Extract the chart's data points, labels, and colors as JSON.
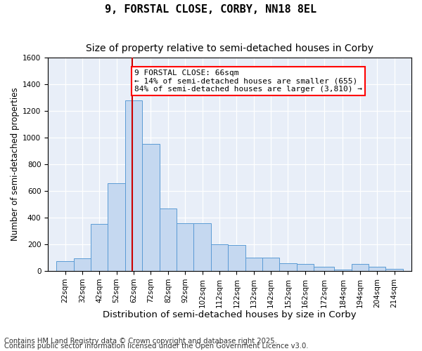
{
  "title_line1": "9, FORSTAL CLOSE, CORBY, NN18 8EL",
  "title_line2": "Size of property relative to semi-detached houses in Corby",
  "xlabel": "Distribution of semi-detached houses by size in Corby",
  "ylabel": "Number of semi-detached properties",
  "annotation_title": "9 FORSTAL CLOSE: 66sqm",
  "annotation_line2": "← 14% of semi-detached houses are smaller (655)",
  "annotation_line3": "84% of semi-detached houses are larger (3,810) →",
  "footnote1": "Contains HM Land Registry data © Crown copyright and database right 2025.",
  "footnote2": "Contains public sector information licensed under the Open Government Licence v3.0.",
  "bar_left_edges": [
    22,
    32,
    42,
    52,
    62,
    72,
    82,
    92,
    102,
    112,
    122,
    132,
    142,
    152,
    162,
    172,
    184,
    194,
    204,
    214
  ],
  "bar_right_edges": [
    32,
    42,
    52,
    62,
    72,
    82,
    92,
    102,
    112,
    122,
    132,
    142,
    152,
    162,
    172,
    184,
    194,
    204,
    214,
    224
  ],
  "bar_heights": [
    75,
    95,
    350,
    660,
    1280,
    950,
    470,
    360,
    360,
    200,
    195,
    100,
    100,
    60,
    55,
    30,
    10,
    50,
    30,
    15
  ],
  "bar_color": "#c5d8f0",
  "bar_edge_color": "#5b9bd5",
  "marker_x": 66,
  "marker_color": "#cc0000",
  "ylim": [
    0,
    1600
  ],
  "yticks": [
    0,
    200,
    400,
    600,
    800,
    1000,
    1200,
    1400,
    1600
  ],
  "xlim_left": 17,
  "xlim_right": 229,
  "background_color": "#e8eef8",
  "grid_color": "#ffffff",
  "title_fontsize": 11,
  "subtitle_fontsize": 10,
  "xlabel_fontsize": 9.5,
  "ylabel_fontsize": 8.5,
  "tick_fontsize": 7.5,
  "annotation_fontsize": 8,
  "footnote_fontsize": 7.2
}
